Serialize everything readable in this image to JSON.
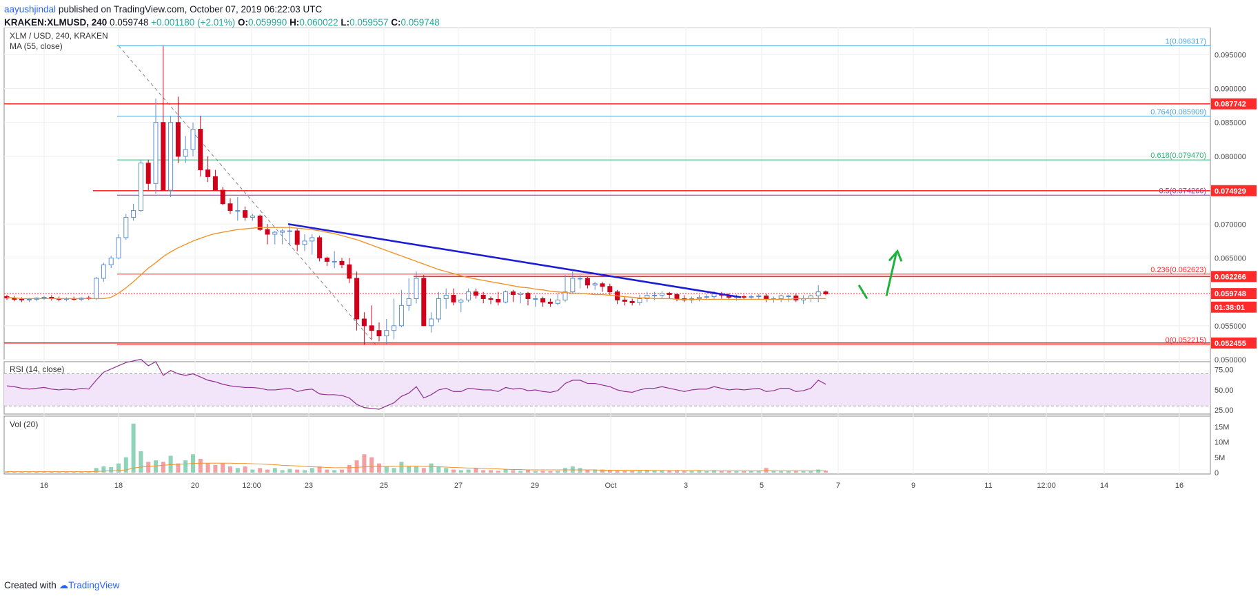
{
  "header": {
    "publisher_user": "aayushjindal",
    "publish_text": " published on TradingView.com, October 07, 2019 06:22:03 UTC",
    "symbol": "KRAKEN:XLMUSD",
    "interval": ", 240",
    "last": "0.059748",
    "change": "+0.001180 (+2.01%)",
    "o_label": "O:",
    "o": "0.059990",
    "h_label": "H:",
    "h": "0.060022",
    "l_label": "L:",
    "l": "0.059557",
    "c_label": "C:",
    "c": "0.059748"
  },
  "footer": {
    "created_with": "Created with",
    "brand": "TradingView"
  },
  "colors": {
    "up": "#5b8ed6",
    "down": "#d0021b",
    "ma": "#f0932b",
    "fib": "#4aa3df",
    "fib618": "#2bb673",
    "fib05": "#9c27b0",
    "resistance": "#ff2a2a",
    "trendline": "#1d1dd6",
    "arrow": "#1bb33c",
    "rsi": "#8e2e8e",
    "vol_up": "#8fd3b8",
    "vol_down": "#f3a0a0"
  },
  "chart_data": [
    {
      "type": "candlestick",
      "title": "XLM / USD, 240, KRAKEN",
      "indicator": "MA (55, close)",
      "ylim": [
        0.05,
        0.099
      ],
      "y_ticks": [
        "0.050000",
        "0.055000",
        "0.065000",
        "0.070000",
        "0.080000",
        "0.085000",
        "0.090000",
        "0.095000"
      ],
      "x_ticks": [
        "16",
        "18",
        "20",
        "12:00",
        "23",
        "25",
        "27",
        "29",
        "Oct",
        "3",
        "5",
        "7",
        "9",
        "11",
        "12:00",
        "14",
        "16"
      ],
      "grid": true,
      "price_labels": [
        {
          "label": "0.087742",
          "value": 0.087742,
          "color": "#ff2a2a"
        },
        {
          "label": "0.074929",
          "value": 0.074929,
          "color": "#ff2a2a"
        },
        {
          "label": "0.062266",
          "value": 0.062266,
          "color": "#ff2a2a"
        },
        {
          "label": "0.059748",
          "value": 0.059748,
          "color": "#ff2a2a"
        },
        {
          "label": "01:38:01",
          "value": 0.05775,
          "color": "#ff2a2a"
        },
        {
          "label": "0.052455",
          "value": 0.052455,
          "color": "#ff2a2a"
        }
      ],
      "fib_levels": [
        {
          "label": "1(0.096317)",
          "value": 0.096317,
          "color": "#4aa3df"
        },
        {
          "label": "0.764(0.085909)",
          "value": 0.085909,
          "color": "#4aa3df"
        },
        {
          "label": "0.618(0.079470)",
          "value": 0.07947,
          "color": "#2bb673"
        },
        {
          "label": "0.5(0.074266)",
          "value": 0.074266,
          "color": "#9c27b0"
        },
        {
          "label": "0.236(0.062623)",
          "value": 0.062623,
          "color": "#ff2a2a"
        },
        {
          "label": "0(0.052215)",
          "value": 0.052215,
          "color": "#ff2a2a"
        }
      ],
      "candles": {
        "o": [
          0.0593,
          0.0591,
          0.0589,
          0.0588,
          0.0589,
          0.0591,
          0.0592,
          0.059,
          0.0589,
          0.059,
          0.0589,
          0.0591,
          0.059,
          0.062,
          0.064,
          0.065,
          0.068,
          0.071,
          0.072,
          0.079,
          0.076,
          0.085,
          0.075,
          0.085,
          0.08,
          0.081,
          0.084,
          0.078,
          0.077,
          0.075,
          0.073,
          0.072,
          0.072,
          0.071,
          0.0712,
          0.0692,
          0.0685,
          0.0688,
          0.069,
          0.069,
          0.067,
          0.0675,
          0.068,
          0.065,
          0.0645,
          0.0645,
          0.064,
          0.062,
          0.056,
          0.055,
          0.0543,
          0.0535,
          0.0543,
          0.055,
          0.058,
          0.059,
          0.062,
          0.055,
          0.056,
          0.059,
          0.0595,
          0.0585,
          0.0588,
          0.06,
          0.0595,
          0.059,
          0.0589,
          0.0585,
          0.06,
          0.0596,
          0.0598,
          0.059,
          0.059,
          0.0585,
          0.0583,
          0.0588,
          0.06,
          0.062,
          0.062,
          0.061,
          0.0612,
          0.0608,
          0.06,
          0.0588,
          0.0586,
          0.0584,
          0.059,
          0.0595,
          0.0595,
          0.0598,
          0.0596,
          0.059,
          0.0588,
          0.059,
          0.0592,
          0.0593,
          0.0597,
          0.0595,
          0.0592,
          0.0593,
          0.0592,
          0.0593,
          0.0594,
          0.0589,
          0.059,
          0.0594,
          0.0594,
          0.0588,
          0.059,
          0.0594,
          0.06
        ],
        "h": [
          0.0596,
          0.0594,
          0.0592,
          0.0591,
          0.0592,
          0.0594,
          0.0595,
          0.0593,
          0.0592,
          0.0593,
          0.0592,
          0.0594,
          0.0622,
          0.0643,
          0.0653,
          0.0685,
          0.0715,
          0.073,
          0.0795,
          0.0795,
          0.0885,
          0.0963,
          0.086,
          0.0888,
          0.083,
          0.085,
          0.086,
          0.08,
          0.078,
          0.0755,
          0.0738,
          0.074,
          0.0726,
          0.0715,
          0.0714,
          0.07,
          0.069,
          0.0693,
          0.07,
          0.0693,
          0.0685,
          0.0685,
          0.0683,
          0.0652,
          0.066,
          0.065,
          0.065,
          0.063,
          0.057,
          0.058,
          0.0555,
          0.056,
          0.059,
          0.0603,
          0.062,
          0.063,
          0.0625,
          0.057,
          0.06,
          0.0605,
          0.0605,
          0.059,
          0.0605,
          0.0605,
          0.06,
          0.0593,
          0.06,
          0.0602,
          0.0603,
          0.06,
          0.06,
          0.0595,
          0.0593,
          0.059,
          0.0598,
          0.0625,
          0.063,
          0.0625,
          0.0622,
          0.0615,
          0.0615,
          0.0612,
          0.0603,
          0.0592,
          0.059,
          0.0596,
          0.06,
          0.06,
          0.0601,
          0.06,
          0.0598,
          0.0595,
          0.0593,
          0.0596,
          0.0597,
          0.0601,
          0.06,
          0.0598,
          0.0596,
          0.0596,
          0.0596,
          0.0597,
          0.0597,
          0.0593,
          0.0596,
          0.0596,
          0.0597,
          0.0595,
          0.0596,
          0.061,
          0.0602
        ],
        "l": [
          0.0588,
          0.0586,
          0.0585,
          0.0585,
          0.0586,
          0.0588,
          0.0587,
          0.0586,
          0.0586,
          0.0587,
          0.0586,
          0.0588,
          0.0588,
          0.0615,
          0.0635,
          0.0648,
          0.0677,
          0.0705,
          0.0718,
          0.075,
          0.0745,
          0.079,
          0.074,
          0.079,
          0.079,
          0.08,
          0.077,
          0.0762,
          0.075,
          0.0728,
          0.0715,
          0.0705,
          0.0705,
          0.0705,
          0.069,
          0.067,
          0.067,
          0.067,
          0.067,
          0.066,
          0.066,
          0.0655,
          0.0645,
          0.0638,
          0.0635,
          0.0635,
          0.0613,
          0.0543,
          0.0522,
          0.053,
          0.0527,
          0.0522,
          0.053,
          0.0548,
          0.0572,
          0.0583,
          0.0552,
          0.054,
          0.0555,
          0.0575,
          0.058,
          0.057,
          0.0585,
          0.059,
          0.0583,
          0.0582,
          0.058,
          0.0583,
          0.0585,
          0.0583,
          0.058,
          0.0578,
          0.0578,
          0.0578,
          0.058,
          0.0585,
          0.0598,
          0.0605,
          0.0605,
          0.0603,
          0.06,
          0.0595,
          0.0582,
          0.058,
          0.058,
          0.058,
          0.0585,
          0.0588,
          0.059,
          0.059,
          0.0586,
          0.0585,
          0.0583,
          0.0586,
          0.0588,
          0.059,
          0.059,
          0.0588,
          0.0587,
          0.0589,
          0.0589,
          0.0589,
          0.0585,
          0.0584,
          0.0585,
          0.0585,
          0.0585,
          0.0582,
          0.0585,
          0.0585,
          0.0595
        ],
        "c": [
          0.0591,
          0.0589,
          0.0588,
          0.0589,
          0.0591,
          0.0592,
          0.059,
          0.0589,
          0.059,
          0.0589,
          0.0591,
          0.059,
          0.062,
          0.064,
          0.065,
          0.068,
          0.071,
          0.072,
          0.079,
          0.076,
          0.085,
          0.075,
          0.085,
          0.08,
          0.081,
          0.084,
          0.078,
          0.077,
          0.075,
          0.073,
          0.072,
          0.072,
          0.071,
          0.0712,
          0.0692,
          0.0685,
          0.0688,
          0.069,
          0.069,
          0.067,
          0.0675,
          0.068,
          0.065,
          0.0645,
          0.0645,
          0.064,
          0.062,
          0.056,
          0.055,
          0.0543,
          0.0535,
          0.0543,
          0.055,
          0.058,
          0.059,
          0.062,
          0.055,
          0.056,
          0.059,
          0.0595,
          0.0585,
          0.0588,
          0.06,
          0.0595,
          0.059,
          0.0589,
          0.0585,
          0.06,
          0.0596,
          0.0598,
          0.059,
          0.059,
          0.0585,
          0.0583,
          0.0588,
          0.06,
          0.062,
          0.062,
          0.061,
          0.0612,
          0.0608,
          0.06,
          0.0588,
          0.0586,
          0.0584,
          0.059,
          0.0595,
          0.0595,
          0.0598,
          0.0596,
          0.059,
          0.0588,
          0.059,
          0.0592,
          0.0593,
          0.0597,
          0.0595,
          0.0592,
          0.0593,
          0.0592,
          0.0593,
          0.0594,
          0.0589,
          0.059,
          0.0594,
          0.0594,
          0.0588,
          0.059,
          0.0594,
          0.06,
          0.0597
        ]
      },
      "ma55": [
        0.0592,
        0.0591,
        0.059,
        0.059,
        0.059,
        0.059,
        0.059,
        0.059,
        0.059,
        0.059,
        0.059,
        0.059,
        0.059,
        0.059,
        0.0592,
        0.0598,
        0.0606,
        0.0615,
        0.0625,
        0.0635,
        0.0643,
        0.0652,
        0.0659,
        0.0665,
        0.067,
        0.0675,
        0.0679,
        0.0683,
        0.0686,
        0.0688,
        0.069,
        0.0692,
        0.0693,
        0.0694,
        0.0695,
        0.0695,
        0.0695,
        0.0695,
        0.0695,
        0.0694,
        0.0693,
        0.0692,
        0.069,
        0.0688,
        0.0686,
        0.0683,
        0.068,
        0.0677,
        0.0673,
        0.0669,
        0.0665,
        0.0661,
        0.0657,
        0.0653,
        0.0649,
        0.0645,
        0.0641,
        0.0637,
        0.0633,
        0.063,
        0.0627,
        0.0624,
        0.0621,
        0.0619,
        0.0617,
        0.0615,
        0.0613,
        0.0611,
        0.0609,
        0.0607,
        0.0606,
        0.0604,
        0.0603,
        0.0601,
        0.06,
        0.0599,
        0.0598,
        0.0598,
        0.0597,
        0.0596,
        0.0596,
        0.0595,
        0.0594,
        0.0593,
        0.0592,
        0.0591,
        0.0591,
        0.059,
        0.059,
        0.059,
        0.0589,
        0.0589,
        0.0589,
        0.0589,
        0.0589,
        0.0589,
        0.0589,
        0.0589,
        0.0589,
        0.0589,
        0.0589,
        0.0589,
        0.0589,
        0.0589,
        0.0589,
        0.0589,
        0.059,
        0.059,
        0.059,
        0.059,
        0.059
      ]
    },
    {
      "type": "line",
      "title": "RSI (14, close)",
      "ylim": [
        20,
        85
      ],
      "y_ticks": [
        "75.00",
        "50.00",
        "25.00"
      ],
      "bands": [
        70,
        30
      ],
      "values": [
        55,
        54,
        52,
        51,
        52,
        53,
        51,
        50,
        51,
        50,
        52,
        51,
        62,
        72,
        76,
        80,
        84,
        86,
        88,
        80,
        85,
        68,
        74,
        70,
        68,
        70,
        66,
        62,
        60,
        57,
        55,
        54,
        53,
        53,
        52,
        50,
        50,
        51,
        52,
        48,
        50,
        51,
        45,
        44,
        44,
        43,
        40,
        32,
        28,
        27,
        26,
        30,
        34,
        42,
        46,
        54,
        40,
        44,
        50,
        52,
        48,
        48,
        52,
        51,
        50,
        50,
        48,
        53,
        51,
        52,
        49,
        50,
        48,
        47,
        49,
        58,
        62,
        62,
        58,
        58,
        56,
        54,
        50,
        48,
        47,
        50,
        52,
        52,
        54,
        52,
        50,
        48,
        50,
        51,
        51,
        54,
        52,
        50,
        51,
        50,
        51,
        52,
        48,
        49,
        52,
        52,
        48,
        49,
        52,
        62,
        57
      ]
    },
    {
      "type": "bar",
      "title": "Vol (20)",
      "y_ticks": [
        "15M",
        "10M",
        "5M",
        "0"
      ],
      "ylim": [
        0,
        18
      ],
      "values": [
        0.4,
        0.3,
        0.3,
        0.2,
        0.3,
        0.3,
        0.3,
        0.2,
        0.3,
        0.2,
        0.3,
        0.2,
        1.5,
        2.0,
        1.8,
        3.0,
        5.0,
        16.0,
        7.0,
        3.5,
        4.0,
        3.5,
        5.5,
        3.0,
        4.0,
        6.0,
        4.5,
        3.0,
        2.5,
        3.0,
        2.0,
        1.5,
        2.0,
        1.0,
        1.5,
        1.0,
        1.5,
        0.8,
        1.2,
        1.0,
        0.8,
        1.5,
        2.0,
        1.0,
        0.8,
        1.0,
        2.5,
        4.0,
        6.0,
        5.0,
        3.0,
        2.0,
        1.5,
        3.5,
        2.0,
        2.0,
        1.5,
        3.0,
        2.0,
        1.5,
        1.0,
        0.8,
        1.0,
        1.5,
        0.8,
        0.8,
        0.6,
        1.0,
        0.8,
        0.6,
        0.8,
        0.6,
        0.6,
        0.5,
        0.6,
        1.5,
        2.0,
        1.5,
        1.0,
        0.8,
        1.0,
        0.8,
        0.6,
        0.5,
        0.5,
        0.6,
        0.8,
        0.6,
        0.8,
        0.6,
        0.8,
        0.5,
        0.5,
        0.6,
        0.5,
        0.8,
        0.6,
        0.5,
        0.5,
        0.5,
        0.5,
        0.6,
        1.5,
        0.6,
        0.5,
        0.6,
        0.6,
        0.5,
        0.5,
        1.0,
        0.6
      ],
      "ma20": [
        0.3,
        0.3,
        0.3,
        0.3,
        0.3,
        0.3,
        0.3,
        0.3,
        0.3,
        0.3,
        0.3,
        0.3,
        0.4,
        0.5,
        0.6,
        0.7,
        0.9,
        1.5,
        1.8,
        2.0,
        2.2,
        2.4,
        2.6,
        2.7,
        2.8,
        3.0,
        3.1,
        3.1,
        3.1,
        3.1,
        3.1,
        3.0,
        3.0,
        2.9,
        2.8,
        2.7,
        2.6,
        2.4,
        2.3,
        2.2,
        2.0,
        1.9,
        1.8,
        1.7,
        1.6,
        1.6,
        1.6,
        1.7,
        1.9,
        2.0,
        2.0,
        2.0,
        2.0,
        2.1,
        2.1,
        2.1,
        2.0,
        2.0,
        1.9,
        1.8,
        1.7,
        1.6,
        1.5,
        1.5,
        1.4,
        1.3,
        1.2,
        1.1,
        1.0,
        1.0,
        0.9,
        0.9,
        0.9,
        0.9,
        0.9,
        0.9,
        0.9,
        0.9,
        0.9,
        0.9,
        0.8,
        0.8,
        0.8,
        0.8,
        0.8,
        0.8,
        0.8,
        0.7,
        0.7,
        0.7,
        0.7,
        0.7,
        0.7,
        0.7,
        0.6,
        0.6,
        0.6,
        0.6,
        0.6,
        0.6,
        0.6,
        0.6,
        0.7,
        0.6,
        0.6,
        0.6,
        0.6,
        0.6,
        0.6,
        0.6,
        0.6
      ]
    }
  ]
}
